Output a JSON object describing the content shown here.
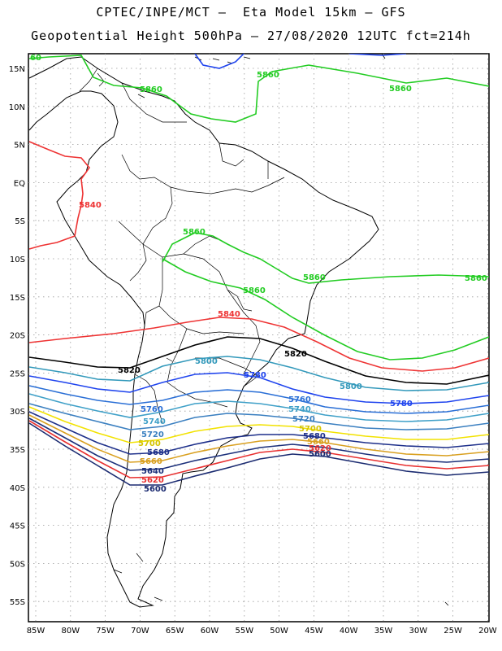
{
  "title_line1": "CPTEC/INPE/MCT –  Eta Model 15km – GFS",
  "title_line2": "Geopotential Height 500hPa – 27/08/2020 12UTC fct=214h",
  "colors": {
    "c5860": "#22cc22",
    "c5840": "#ee3333",
    "c5820": "#000000",
    "c5800": "#3399bb",
    "c5780": "#1f44ee",
    "c5760": "#2a6fd6",
    "c5740": "#3fa0c8",
    "c5720": "#3a7fc0",
    "c5700": "#f2e200",
    "c5680": "#1d2f8a",
    "c5660": "#d9a020",
    "c5640": "#1b2f7a",
    "c5620": "#e83030",
    "c5600": "#1a2a70",
    "coast": "#000000",
    "grid": "#9a9a9a"
  },
  "map": {
    "lat_labels": [
      "15N",
      "10N",
      "5N",
      "EQ",
      "5S",
      "10S",
      "15S",
      "20S",
      "25S",
      "30S",
      "35S",
      "40S",
      "45S",
      "50S",
      "55S"
    ],
    "lon_labels": [
      "85W",
      "80W",
      "75W",
      "70W",
      "65W",
      "60W",
      "55W",
      "50W",
      "45W",
      "40W",
      "35W",
      "30W",
      "25W",
      "20W"
    ],
    "contour_labels": [
      {
        "text": "5860",
        "color": "#22cc22"
      },
      {
        "text": "5860",
        "color": "#22cc22"
      },
      {
        "text": "5860",
        "color": "#22cc22"
      },
      {
        "text": "5860",
        "color": "#22cc22"
      },
      {
        "text": "5860",
        "color": "#22cc22"
      },
      {
        "text": "5860",
        "color": "#22cc22"
      },
      {
        "text": "5860",
        "color": "#22cc22"
      },
      {
        "text": "60",
        "color": "#22cc22"
      },
      {
        "text": "5840",
        "color": "#ee3333"
      },
      {
        "text": "5840",
        "color": "#ee3333"
      },
      {
        "text": "5820",
        "color": "#000000"
      },
      {
        "text": "5820",
        "color": "#000000"
      },
      {
        "text": "5800",
        "color": "#3399bb"
      },
      {
        "text": "5800",
        "color": "#3399bb"
      },
      {
        "text": "5780",
        "color": "#1f44ee"
      },
      {
        "text": "5780",
        "color": "#1f44ee"
      },
      {
        "text": "5760",
        "color": "#2a6fd6"
      },
      {
        "text": "5760",
        "color": "#2a6fd6"
      },
      {
        "text": "5740",
        "color": "#3fa0c8"
      },
      {
        "text": "5740",
        "color": "#3fa0c8"
      },
      {
        "text": "5720",
        "color": "#3a7fc0"
      },
      {
        "text": "5720",
        "color": "#3a7fc0"
      },
      {
        "text": "5700",
        "color": "#d4c400"
      },
      {
        "text": "5700",
        "color": "#d4c400"
      },
      {
        "text": "5680",
        "color": "#1d2f8a"
      },
      {
        "text": "5680",
        "color": "#1d2f8a"
      },
      {
        "text": "5660",
        "color": "#d9a020"
      },
      {
        "text": "5660",
        "color": "#d9a020"
      },
      {
        "text": "5640",
        "color": "#1b2f7a"
      },
      {
        "text": "5620",
        "color": "#e83030"
      },
      {
        "text": "5600",
        "color": "#1a2a70"
      },
      {
        "text": "5620",
        "color": "#e83030"
      },
      {
        "text": "5600",
        "color": "#1a2a70"
      }
    ]
  }
}
